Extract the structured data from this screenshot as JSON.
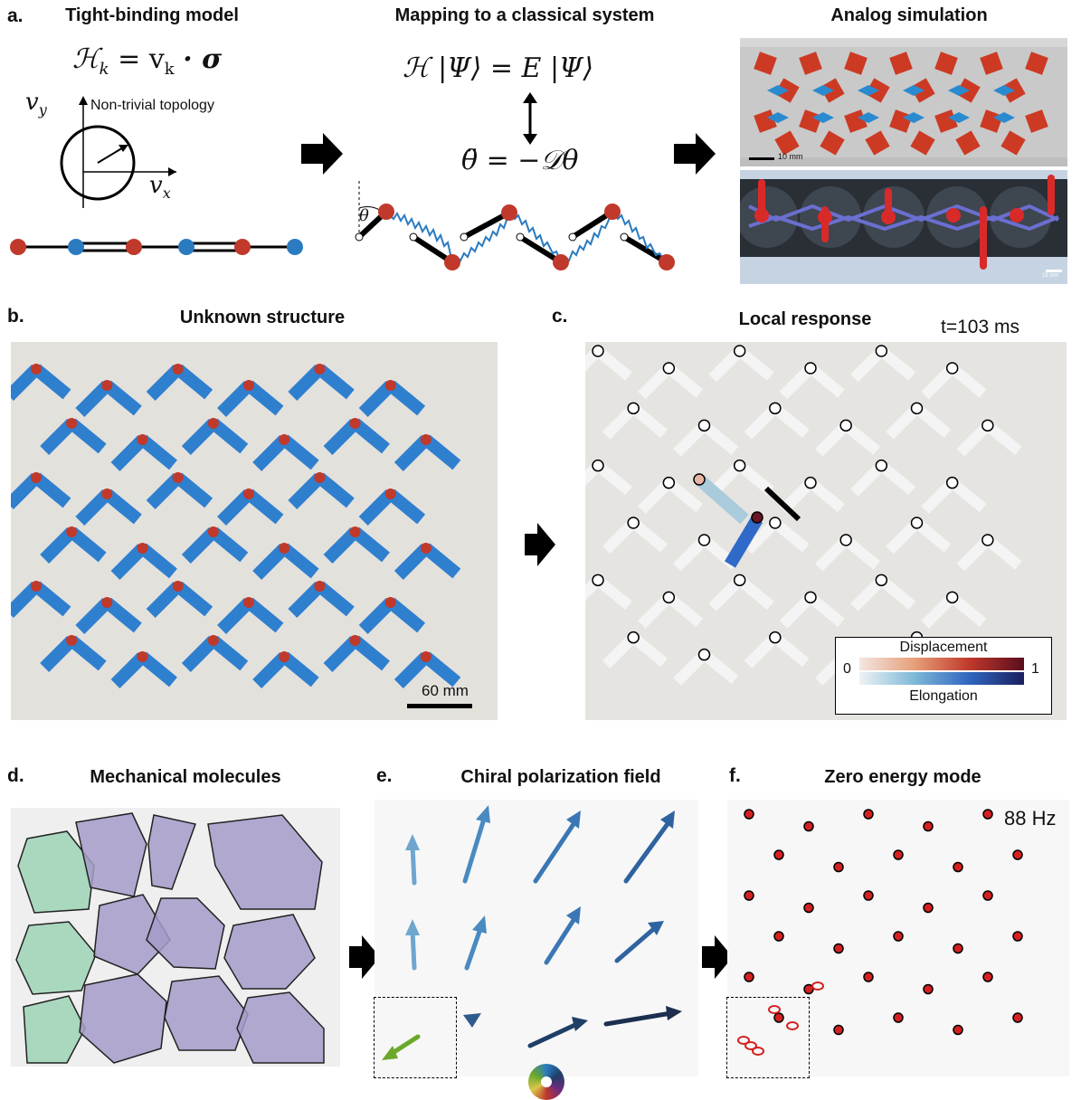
{
  "panel_a": {
    "label": "a.",
    "title_left": "Tight-binding model",
    "title_mid": "Mapping to a classical system",
    "title_right": "Analog simulation",
    "eq_hamiltonian": "ℋ",
    "eq_hamiltonian_sub": "k",
    "eq_hamiltonian_rhs": "= v",
    "eq_hamiltonian_rhs_sub": "k",
    "eq_hamiltonian_tail": "· σ",
    "vy": "v",
    "vy_sub": "y",
    "vx": "v",
    "vx_sub": "x",
    "topology_note": "Non-trivial topology",
    "schrodinger": "ℋ |Ψ⟩ = E |Ψ⟩",
    "newton": "θ̈ = −𝒟θ",
    "theta": "θ",
    "scale_top": "10 mm",
    "scale_bottom": "15 mm"
  },
  "panel_b": {
    "label": "b.",
    "title": "Unknown structure",
    "scale": "60 mm"
  },
  "panel_c": {
    "label": "c.",
    "title": "Local response",
    "time": "t=103 ms",
    "legend_top": "Displacement",
    "legend_bottom": "Elongation",
    "legend_min": "0",
    "legend_max": "1"
  },
  "panel_d": {
    "label": "d.",
    "title": "Mechanical molecules"
  },
  "panel_e": {
    "label": "e.",
    "title": "Chiral polarization field"
  },
  "panel_f": {
    "label": "f.",
    "title": "Zero energy mode",
    "freq": "88 Hz"
  },
  "colors": {
    "red_site": "#c0392b",
    "blue_site": "#2b7bc0",
    "blue_beam": "#2f7fcf",
    "green_molecule": "#9ed3b5",
    "purple_molecule": "#a59bc9",
    "arrow_green": "#6aa82b",
    "arrow_dark": "#1f3f66"
  }
}
